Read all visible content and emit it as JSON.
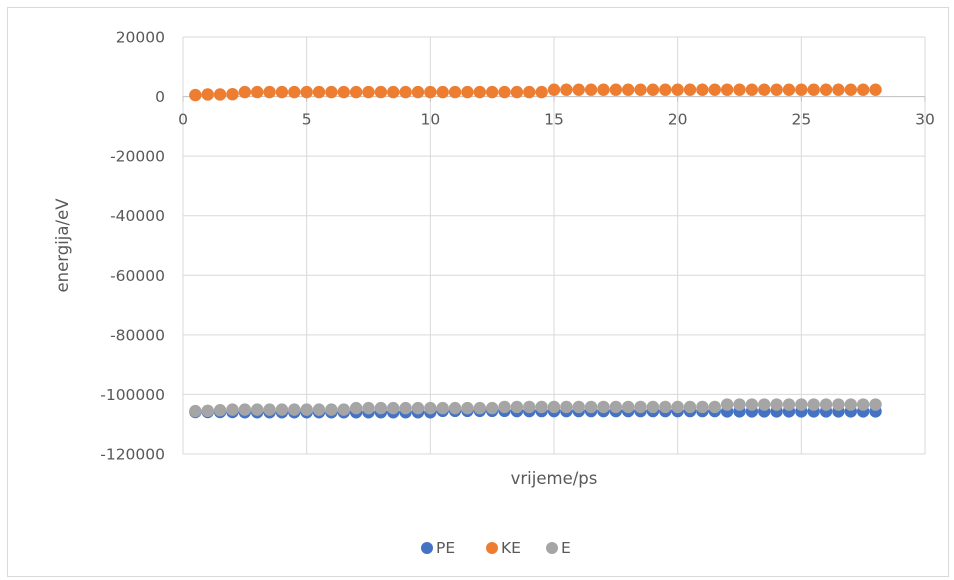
{
  "chart_data": {
    "type": "scatter",
    "title": "",
    "xlabel": "vrijeme/ps",
    "ylabel": "energija/eV",
    "xlim": [
      0,
      30
    ],
    "ylim": [
      -120000,
      20000
    ],
    "x_ticks": [
      0,
      5,
      10,
      15,
      20,
      25,
      30
    ],
    "x_tick_labels": [
      "0",
      "5",
      "10",
      "15",
      "20",
      "25",
      "30"
    ],
    "y_ticks": [
      20000,
      0,
      -20000,
      -40000,
      -60000,
      -80000,
      -100000,
      -120000
    ],
    "y_tick_labels": [
      "20000",
      "0",
      "-20000",
      "-40000",
      "-60000",
      "-80000",
      "-100000",
      "-120000"
    ],
    "grid": true,
    "legend_position": "bottom",
    "x": [
      0.5,
      1.0,
      1.5,
      2.0,
      2.5,
      3.0,
      3.5,
      4.0,
      4.5,
      5.0,
      5.5,
      6.0,
      6.5,
      7.0,
      7.5,
      8.0,
      8.5,
      9.0,
      9.5,
      10.0,
      10.5,
      11.0,
      11.5,
      12.0,
      12.5,
      13.0,
      13.5,
      14.0,
      14.5,
      15.0,
      15.5,
      16.0,
      16.5,
      17.0,
      17.5,
      18.0,
      18.5,
      19.0,
      19.5,
      20.0,
      20.5,
      21.0,
      21.5,
      22.0,
      22.5,
      23.0,
      23.5,
      24.0,
      24.5,
      25.0,
      25.5,
      26.0,
      26.5,
      27.0,
      27.5,
      28.0
    ],
    "series": [
      {
        "name": "PE",
        "color": "#4472c4",
        "values": [
          -105900,
          -105900,
          -105900,
          -105900,
          -106000,
          -106000,
          -106000,
          -106000,
          -106000,
          -106000,
          -106000,
          -106000,
          -106000,
          -106000,
          -106000,
          -106000,
          -106000,
          -106000,
          -106000,
          -106000,
          -105500,
          -105500,
          -105500,
          -105500,
          -105500,
          -105500,
          -105600,
          -105600,
          -105600,
          -105600,
          -105600,
          -105600,
          -105600,
          -105600,
          -105600,
          -105600,
          -105600,
          -105600,
          -105600,
          -105600,
          -105600,
          -105600,
          -105600,
          -105700,
          -105700,
          -105700,
          -105700,
          -105700,
          -105700,
          -105700,
          -105700,
          -105700,
          -105700,
          -105700,
          -105700,
          -105700
        ]
      },
      {
        "name": "KE",
        "color": "#ed7d31",
        "values": [
          500,
          700,
          700,
          800,
          1500,
          1500,
          1500,
          1500,
          1500,
          1500,
          1500,
          1500,
          1500,
          1500,
          1500,
          1500,
          1500,
          1500,
          1500,
          1500,
          1500,
          1500,
          1500,
          1500,
          1500,
          1500,
          1500,
          1500,
          1500,
          2300,
          2300,
          2300,
          2300,
          2300,
          2300,
          2300,
          2300,
          2300,
          2300,
          2300,
          2300,
          2300,
          2300,
          2300,
          2300,
          2300,
          2300,
          2300,
          2300,
          2300,
          2300,
          2300,
          2300,
          2300,
          2300,
          2300
        ]
      },
      {
        "name": "E",
        "color": "#a5a5a5",
        "values": [
          -105600,
          -105500,
          -105300,
          -105100,
          -105100,
          -105100,
          -105100,
          -105100,
          -105100,
          -105100,
          -105100,
          -105100,
          -105100,
          -104600,
          -104600,
          -104600,
          -104600,
          -104600,
          -104600,
          -104600,
          -104600,
          -104600,
          -104600,
          -104600,
          -104600,
          -104200,
          -104200,
          -104200,
          -104200,
          -104200,
          -104200,
          -104200,
          -104200,
          -104200,
          -104200,
          -104200,
          -104200,
          -104200,
          -104200,
          -104200,
          -104200,
          -104200,
          -104200,
          -103400,
          -103400,
          -103400,
          -103400,
          -103400,
          -103400,
          -103400,
          -103400,
          -103400,
          -103400,
          -103400,
          -103400,
          -103400
        ]
      }
    ]
  }
}
